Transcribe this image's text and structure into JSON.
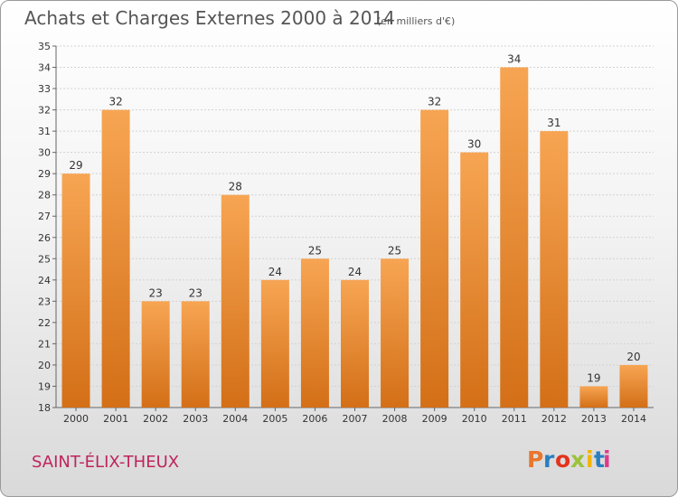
{
  "header": {
    "title": "Achats et Charges Externes 2000 à 2014",
    "unit": "(en milliers d'€)"
  },
  "footer": {
    "commune": "SAINT-ÉLIX-THEUX",
    "logo": "Proxiti",
    "logo_colors": [
      "#e8762d",
      "#2a7fc0",
      "#e3331d",
      "#9dc23b",
      "#f4b400",
      "#2a7fc0",
      "#e03a8c"
    ]
  },
  "chart_data": {
    "type": "bar",
    "title": "Achats et Charges Externes 2000 à 2014",
    "subtitle": "(en milliers d'€)",
    "categories": [
      "2000",
      "2001",
      "2002",
      "2003",
      "2004",
      "2005",
      "2006",
      "2007",
      "2008",
      "2009",
      "2010",
      "2011",
      "2012",
      "2013",
      "2014"
    ],
    "values": [
      29,
      32,
      23,
      23,
      28,
      24,
      25,
      24,
      25,
      32,
      30,
      34,
      31,
      19,
      20
    ],
    "ylim": [
      18,
      35
    ],
    "yticks": [
      18,
      19,
      20,
      21,
      22,
      23,
      24,
      25,
      26,
      27,
      28,
      29,
      30,
      31,
      32,
      33,
      34,
      35
    ],
    "grid": true,
    "bar_color": "#f0953a",
    "bar_color_dark": "#d06d18"
  }
}
